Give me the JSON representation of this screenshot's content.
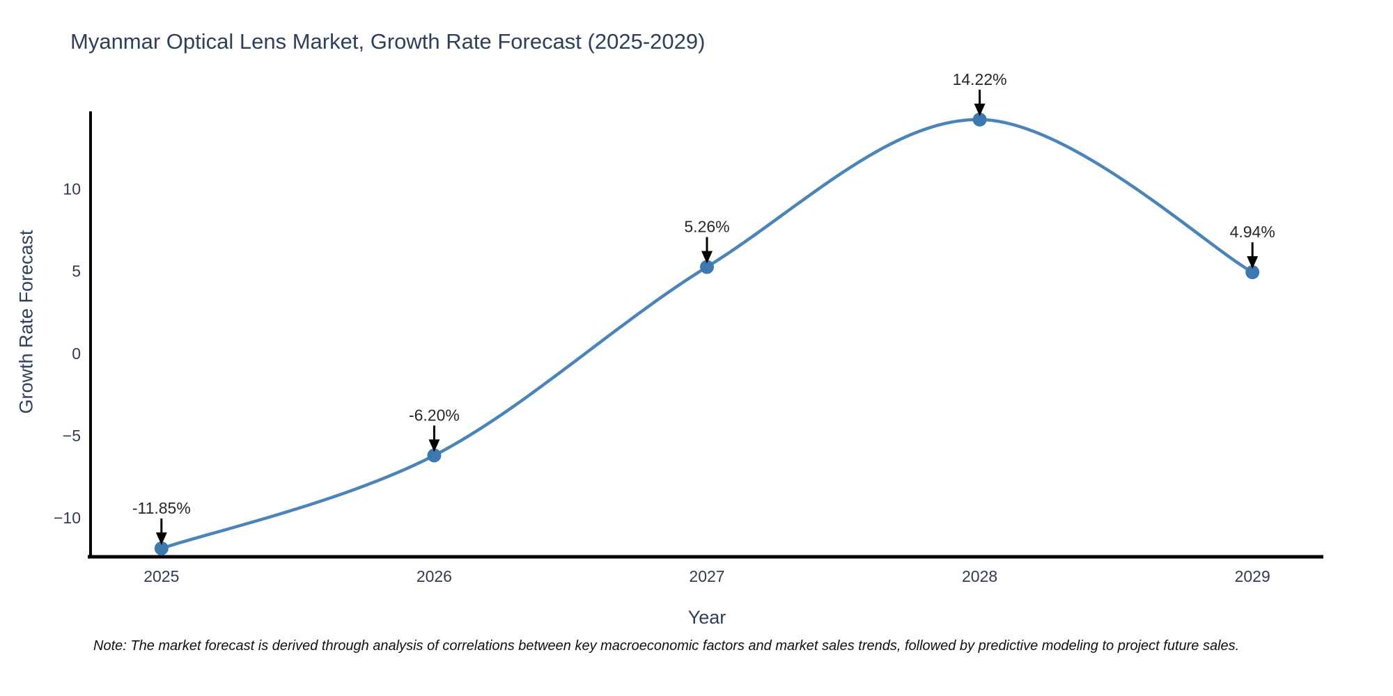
{
  "title": "Myanmar Optical Lens Market, Growth Rate Forecast (2025-2029)",
  "note": "Note: The market forecast is derived through analysis of correlations between key macroeconomic factors and market sales trends, followed by predictive modeling to project future sales.",
  "chart_data": {
    "type": "line",
    "title": "Myanmar Optical Lens Market, Growth Rate Forecast (2025-2029)",
    "xlabel": "Year",
    "ylabel": "Growth Rate Forecast",
    "categories": [
      "2025",
      "2026",
      "2027",
      "2028",
      "2029"
    ],
    "values": [
      -11.85,
      -6.2,
      5.26,
      14.22,
      4.94
    ],
    "point_labels": [
      "-11.85%",
      "-6.20%",
      "5.26%",
      "14.22%",
      "4.94%"
    ],
    "yticks": [
      10,
      5,
      0,
      -5,
      -10
    ],
    "ylim": [
      -12.36,
      14.72
    ],
    "xlim_pad_years": [
      0.26,
      0.26
    ],
    "line_shape": "spline",
    "grid": false,
    "legend": "none",
    "colors": {
      "line": "#4a84b8",
      "marker": "#3c79b0",
      "axis": "#000000",
      "tick_label": "#2f3b52",
      "annotation_text": "#262626",
      "annotation_arrow": "#000000",
      "title": "#2e3f5c"
    }
  }
}
